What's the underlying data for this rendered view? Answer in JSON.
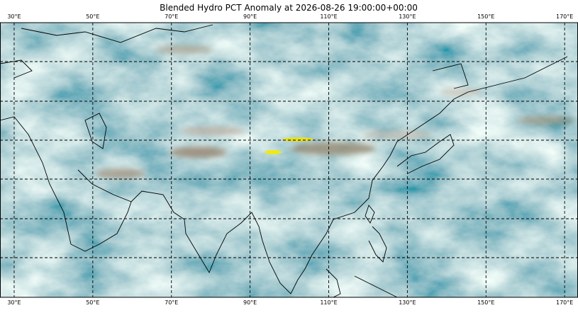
{
  "map": {
    "title": "Blended Hydro PCT Anomaly at 2026-08-26 19:00:00+00:00",
    "xlim": [
      26.4,
      173.4
    ],
    "xticks": [
      {
        "value": 30,
        "label": "30°E"
      },
      {
        "value": 50,
        "label": "50°E"
      },
      {
        "value": 70,
        "label": "70°E"
      },
      {
        "value": 90,
        "label": "90°E"
      },
      {
        "value": 110,
        "label": "110°E"
      },
      {
        "value": 130,
        "label": "130°E"
      },
      {
        "value": 150,
        "label": "150°E"
      },
      {
        "value": 170,
        "label": "170°E"
      }
    ]
  }
}
